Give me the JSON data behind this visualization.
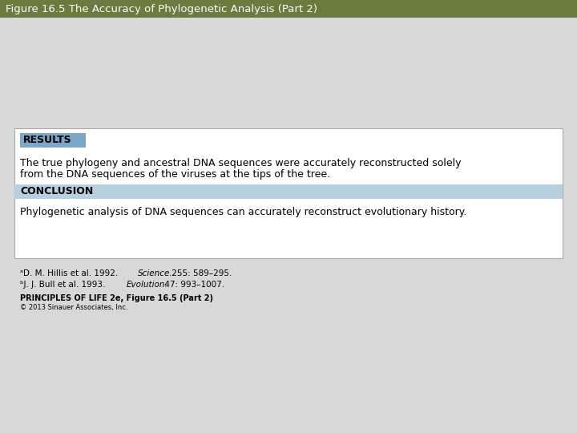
{
  "title": "Figure 16.5 The Accuracy of Phylogenetic Analysis (Part 2)",
  "title_bg_color": "#6b7a3e",
  "title_text_color": "#ffffff",
  "title_fontsize": 9.5,
  "outer_bg_color": "#d8d8d8",
  "results_label": "RESULTS",
  "results_label_bg": "#7ba7c9",
  "results_text_line1": "The true phylogeny and ancestral DNA sequences were accurately reconstructed solely",
  "results_text_line2": "from the DNA sequences of the viruses at the tips of the tree.",
  "conclusion_label": "CONCLUSION",
  "conclusion_label_bg": "#b8cfe0",
  "conclusion_text": "Phylogenetic analysis of DNA sequences can accurately reconstruct evolutionary history.",
  "box_bg": "#ffffff",
  "box_border": "#aaaaaa",
  "ref1a": "ᵃD. M. Hillis et al. 1992. ",
  "ref1b": "Science.",
  "ref1c": " 255: 589–295.",
  "ref2a": "ᵇJ. J. Bull et al. 1993. ",
  "ref2b": "Evolution.",
  "ref2c": " 47: 993–1007.",
  "footer1": "PRINCIPLES OF LIFE 2e, Figure 16.5 (Part 2)",
  "footer2": "© 2013 Sinauer Associates, Inc.",
  "main_text_fontsize": 9.0,
  "label_fontsize": 9.0,
  "ref_fontsize": 7.5,
  "footer1_fontsize": 7.0,
  "footer2_fontsize": 6.0
}
